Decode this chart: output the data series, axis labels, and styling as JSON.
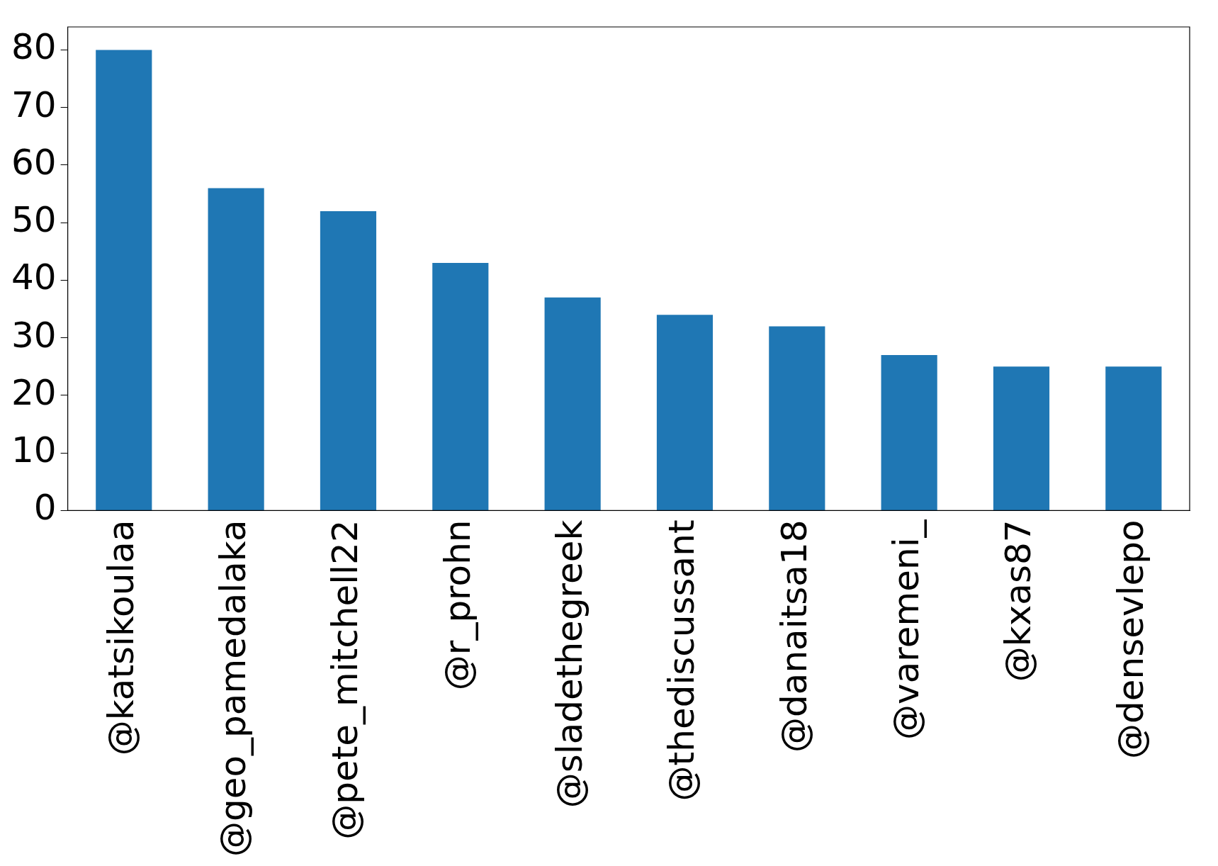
{
  "chart_data": {
    "type": "bar",
    "categories": [
      "@katsikoulaa",
      "@geo_pamedalaka",
      "@pete_mitchell22",
      "@r_prohn",
      "@sladethegreek",
      "@thediscussant",
      "@danaitsa18",
      "@varemeni_",
      "@kxas87",
      "@densevlepo"
    ],
    "values": [
      80,
      56,
      52,
      43,
      37,
      34,
      32,
      27,
      25,
      25
    ],
    "color": "#1f77b4",
    "ylim": [
      0,
      84
    ],
    "yticks": [
      0,
      10,
      20,
      30,
      40,
      50,
      60,
      70,
      80
    ],
    "grid": false,
    "legend": false
  }
}
